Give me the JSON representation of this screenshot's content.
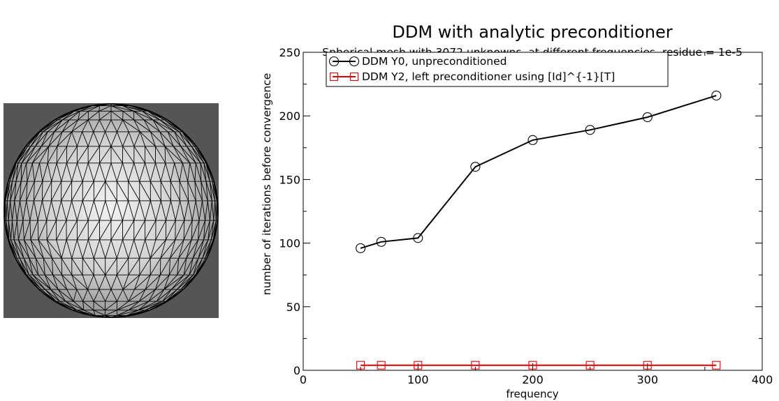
{
  "mesh_image": {
    "icon": "triangulated-sphere-mesh",
    "background_color": "#555555",
    "line_color": "#000000"
  },
  "chart_data": {
    "type": "line",
    "title": "DDM with analytic preconditioner",
    "subtitle": "Spherical mesh with 3072 unknowns, at different frequencies, residue = 1e-5",
    "xlabel": "frequency",
    "ylabel": "number of iterations before convergence",
    "xlim": [
      0,
      400
    ],
    "ylim": [
      0,
      250
    ],
    "xticks": [
      0,
      100,
      200,
      300,
      400
    ],
    "yticks": [
      0,
      50,
      100,
      150,
      200,
      250
    ],
    "grid": false,
    "legend_position": "top-left",
    "series": [
      {
        "name": "DDM Y0, unpreconditioned",
        "color": "#000000",
        "marker": "circle",
        "x": [
          50,
          68,
          100,
          150,
          200,
          250,
          300,
          360
        ],
        "y": [
          96,
          101,
          104,
          160,
          181,
          189,
          199,
          216
        ]
      },
      {
        "name": "DDM Y2, left preconditioner using [Id]^{-1}[T]",
        "color": "#e00000",
        "marker": "square",
        "x": [
          50,
          68,
          100,
          150,
          200,
          250,
          300,
          360
        ],
        "y": [
          4,
          4,
          4,
          4,
          4,
          4,
          4,
          4
        ]
      }
    ]
  }
}
